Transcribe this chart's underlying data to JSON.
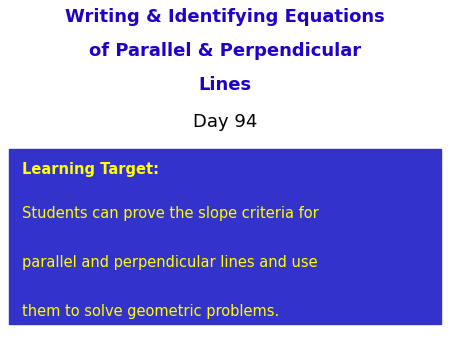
{
  "title_line1": "Writing & Identifying Equations",
  "title_line2": "of Parallel & Perpendicular",
  "title_line3": "Lines",
  "subtitle": "Day 94",
  "title_color": "#2200CC",
  "subtitle_color": "#000000",
  "bg_color": "#FFFFFF",
  "box_bg_color": "#3333CC",
  "box_label": "Learning Target:",
  "box_label_color": "#FFFF00",
  "box_text_line1": "Students can prove the slope criteria for",
  "box_text_line2": "parallel and perpendicular lines and use",
  "box_text_line3": "them to solve geometric problems.",
  "box_text_color": "#FFFF00",
  "title_fontsize": 13,
  "subtitle_fontsize": 13,
  "label_fontsize": 10.5,
  "body_fontsize": 10.5
}
